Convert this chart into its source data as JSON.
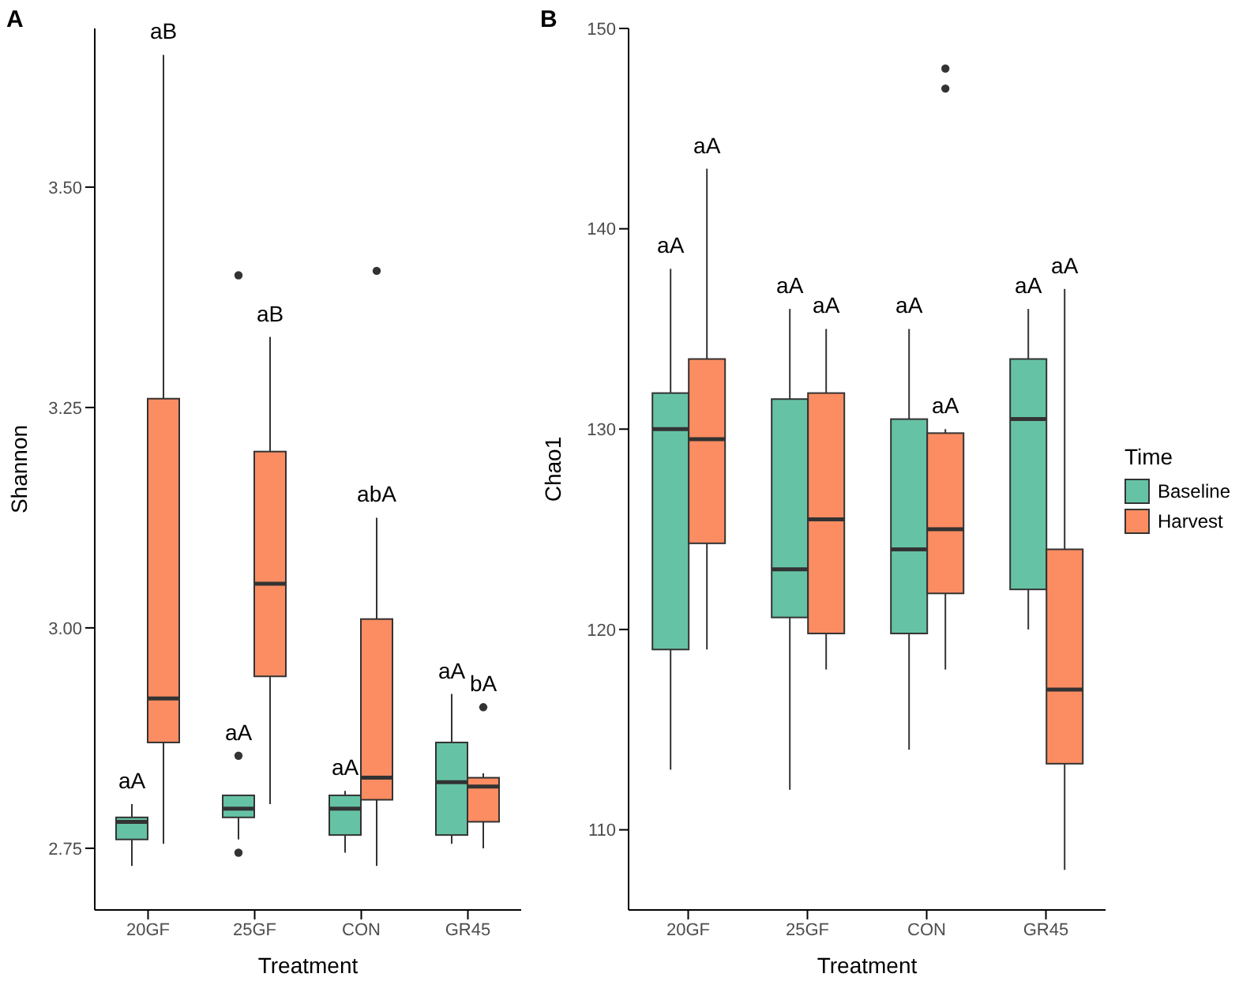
{
  "chart_data": [
    {
      "type": "box",
      "title": "A",
      "xlabel": "Treatment",
      "ylabel": "Shannon",
      "categories": [
        "20GF",
        "25GF",
        "CON",
        "GR45"
      ],
      "ylim": [
        2.68,
        3.68
      ],
      "yticks": [
        {
          "value": 2.75,
          "label": "2.75"
        },
        {
          "value": 3.0,
          "label": "3.00"
        },
        {
          "value": 3.25,
          "label": "3.25"
        },
        {
          "value": 3.5,
          "label": "3.50"
        }
      ],
      "legend": false,
      "series": [
        {
          "color": "#66c2a5",
          "boxes": [
            {
              "low": 2.73,
              "q1": 2.76,
              "median": 2.78,
              "q3": 2.785,
              "high": 2.8
            },
            {
              "low": 2.76,
              "q1": 2.785,
              "median": 2.795,
              "q3": 2.81,
              "high": 2.81,
              "outliers": [
                2.855,
                2.745,
                3.4
              ]
            },
            {
              "low": 2.745,
              "q1": 2.765,
              "median": 2.795,
              "q3": 2.81,
              "high": 2.815
            },
            {
              "low": 2.755,
              "q1": 2.765,
              "median": 2.825,
              "q3": 2.87,
              "high": 2.925
            }
          ]
        },
        {
          "color": "#fc8d62",
          "boxes": [
            {
              "low": 2.755,
              "q1": 2.87,
              "median": 2.92,
              "q3": 3.26,
              "high": 3.65
            },
            {
              "low": 2.8,
              "q1": 2.945,
              "median": 3.05,
              "q3": 3.2,
              "high": 3.33
            },
            {
              "low": 2.73,
              "q1": 2.805,
              "median": 2.83,
              "q3": 3.01,
              "high": 3.125,
              "outliers": [
                3.405
              ]
            },
            {
              "low": 2.75,
              "q1": 2.78,
              "median": 2.82,
              "q3": 2.83,
              "high": 2.835,
              "outliers": [
                2.91
              ]
            }
          ]
        }
      ],
      "annotations": [
        "aA",
        "aB",
        "aA",
        "aB",
        "aA",
        "abA",
        "aA",
        "bA"
      ]
    },
    {
      "type": "box",
      "title": "B",
      "xlabel": "Treatment",
      "ylabel": "Chao1",
      "legend_title": "Time",
      "legend": "right",
      "categories": [
        "20GF",
        "25GF",
        "CON",
        "GR45"
      ],
      "ylim": [
        106,
        150
      ],
      "yticks": [
        110,
        120,
        130,
        140,
        150
      ],
      "series": [
        {
          "name": "Baseline",
          "color": "#66c2a5",
          "boxes": [
            {
              "low": 113,
              "q1": 119,
              "median": 130,
              "q3": 131.8,
              "high": 138
            },
            {
              "low": 112,
              "q1": 120.6,
              "median": 123,
              "q3": 131.5,
              "high": 136
            },
            {
              "low": 114,
              "q1": 119.8,
              "median": 124,
              "q3": 130.5,
              "high": 135
            },
            {
              "low": 120,
              "q1": 122,
              "median": 130.5,
              "q3": 133.5,
              "high": 136
            }
          ]
        },
        {
          "name": "Harvest",
          "color": "#fc8d62",
          "boxes": [
            {
              "low": 119,
              "q1": 124.3,
              "median": 129.5,
              "q3": 133.5,
              "high": 143
            },
            {
              "low": 118,
              "q1": 119.8,
              "median": 125.5,
              "q3": 131.8,
              "high": 135
            },
            {
              "low": 118,
              "q1": 121.8,
              "median": 125,
              "q3": 129.8,
              "high": 130,
              "outliers": [
                148,
                147
              ]
            },
            {
              "low": 108,
              "q1": 113.3,
              "median": 117,
              "q3": 124,
              "high": 137
            }
          ]
        }
      ],
      "annotations": [
        "aA",
        "aA",
        "aA",
        "aA",
        "aA",
        "aA",
        "aA",
        "aA"
      ]
    }
  ]
}
